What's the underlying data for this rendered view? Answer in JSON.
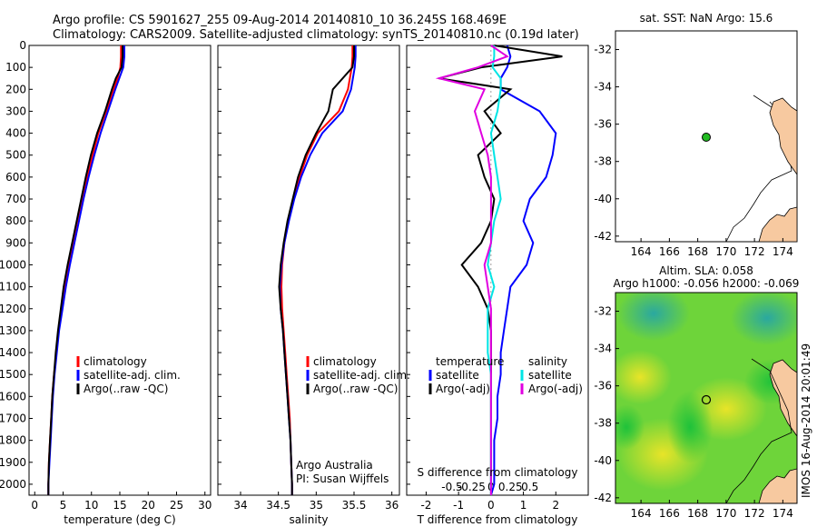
{
  "title_line1": "Argo profile: CS 5901627_255 09-Aug-2014 20140810_10 36.245S 168.469E",
  "title_line2": "Climatology: CARS2009. Satellite-adjusted climatology: synTS_20140810.nc (0.19d later)",
  "side_text": "IMOS 16-Aug-2014 20:01:49",
  "colors": {
    "climatology": "#ff0000",
    "satellite": "#0000ff",
    "argo": "#000000",
    "satellite_s": "#00e5e5",
    "argo_s": "#e000e0",
    "land": "#f7c9a0",
    "point": "#22bb22",
    "ocean_bg": "#ffffff"
  },
  "chart_data": [
    {
      "type": "line",
      "name": "temperature",
      "xlabel": "temperature (deg C)",
      "ylabel": "",
      "xlim": [
        -1,
        31
      ],
      "ylim": [
        2050,
        0
      ],
      "xticks": [
        "0",
        "5",
        "10",
        "15",
        "20",
        "25",
        "30"
      ],
      "yticks": [
        "0",
        "100",
        "200",
        "300",
        "400",
        "500",
        "600",
        "700",
        "800",
        "900",
        "1000",
        "1100",
        "1200",
        "1300",
        "1400",
        "1500",
        "1600",
        "1700",
        "1800",
        "1900",
        "2000"
      ],
      "legend": [
        "climatology",
        "satellite-adj. clim.",
        "Argo(..raw -QC)"
      ],
      "depth": [
        0,
        50,
        100,
        150,
        200,
        300,
        400,
        500,
        600,
        700,
        800,
        900,
        1000,
        1100,
        1200,
        1300,
        1400,
        1500,
        1600,
        1700,
        1800,
        1900,
        2000,
        2050
      ],
      "series": [
        {
          "name": "climatology",
          "values": [
            15.2,
            15.2,
            15.1,
            14.6,
            13.9,
            12.6,
            11.2,
            10.2,
            9.2,
            8.3,
            7.5,
            6.7,
            6.0,
            5.3,
            4.7,
            4.2,
            3.8,
            3.4,
            3.1,
            2.9,
            2.7,
            2.5,
            2.4,
            2.4
          ]
        },
        {
          "name": "satellite-adj. clim.",
          "values": [
            15.8,
            15.8,
            15.6,
            14.9,
            14.2,
            12.9,
            11.6,
            10.5,
            9.5,
            8.6,
            7.8,
            7.0,
            6.2,
            5.5,
            4.9,
            4.3,
            3.9,
            3.5,
            3.2,
            3.0,
            2.8,
            2.6,
            2.4,
            2.4
          ]
        },
        {
          "name": "Argo(..raw -QC)",
          "values": [
            15.5,
            15.5,
            15.3,
            14.3,
            13.6,
            12.4,
            11.0,
            9.9,
            9.0,
            8.2,
            7.4,
            6.6,
            5.8,
            5.1,
            4.6,
            4.1,
            3.7,
            3.4,
            3.1,
            2.9,
            2.7,
            2.5,
            2.4,
            2.4
          ]
        }
      ]
    },
    {
      "type": "line",
      "name": "salinity",
      "xlabel": "salinity",
      "xlim": [
        33.7,
        36.1
      ],
      "ylim": [
        2050,
        0
      ],
      "xticks": [
        "34",
        "34.5",
        "35",
        "35.5",
        "36"
      ],
      "legend": [
        "climatology",
        "satellite-adj. clim.",
        "Argo(..raw -QC)"
      ],
      "annotation": [
        "Argo Australia",
        "PI: Susan Wijffels"
      ],
      "depth": [
        0,
        50,
        100,
        200,
        300,
        400,
        500,
        600,
        700,
        800,
        900,
        1000,
        1100,
        1200,
        1300,
        1400,
        1500,
        1600,
        1700,
        1800,
        1900,
        2000,
        2050
      ],
      "series": [
        {
          "name": "climatology",
          "values": [
            35.48,
            35.48,
            35.47,
            35.42,
            35.3,
            35.02,
            34.88,
            34.78,
            34.7,
            34.63,
            34.58,
            34.55,
            34.54,
            34.55,
            34.57,
            34.59,
            34.61,
            34.63,
            34.65,
            34.66,
            34.67,
            34.68,
            34.68
          ]
        },
        {
          "name": "satellite-adj. clim.",
          "values": [
            35.52,
            35.52,
            35.51,
            35.46,
            35.35,
            35.08,
            34.92,
            34.8,
            34.71,
            34.64,
            34.58,
            34.54,
            34.52,
            34.53,
            34.56,
            34.58,
            34.6,
            34.62,
            34.64,
            34.66,
            34.67,
            34.68,
            34.68
          ]
        },
        {
          "name": "Argo(..raw -QC)",
          "values": [
            35.5,
            35.5,
            35.48,
            35.22,
            35.16,
            35.0,
            34.86,
            34.76,
            34.69,
            34.62,
            34.57,
            34.53,
            34.51,
            34.53,
            34.56,
            34.58,
            34.6,
            34.62,
            34.64,
            34.66,
            34.67,
            34.68,
            34.68
          ]
        }
      ]
    },
    {
      "type": "line",
      "name": "difference",
      "xlabel": "T difference from climatology",
      "xlabel2": "S difference from climatology",
      "xlim": [
        -2.6,
        3.0
      ],
      "ylim": [
        2050,
        0
      ],
      "xticks": [
        "-2",
        "-1",
        "0",
        "1",
        "2"
      ],
      "xticks2": [
        "-0.5",
        "-0.25",
        "0",
        "0.25",
        "0.5"
      ],
      "legend_t": [
        "temperature",
        "satellite",
        "Argo(-adj)"
      ],
      "legend_s": [
        "salinity",
        "satellite",
        "Argo(-adj)"
      ],
      "depth": [
        0,
        50,
        100,
        150,
        200,
        300,
        400,
        500,
        600,
        700,
        800,
        900,
        1000,
        1100,
        1200,
        1300,
        1400,
        1500,
        1600,
        1700,
        1800,
        1900,
        2000,
        2050
      ],
      "series": [
        {
          "name": "temperature satellite",
          "values": [
            0.5,
            0.6,
            0.5,
            0.3,
            0.3,
            1.5,
            2.0,
            1.9,
            1.7,
            1.2,
            1.0,
            1.3,
            1.1,
            0.6,
            0.5,
            0.4,
            0.3,
            0.3,
            0.2,
            0.2,
            0.1,
            0.1,
            0.1,
            0.0
          ]
        },
        {
          "name": "temperature Argo(-adj)",
          "values": [
            0.1,
            2.2,
            -0.3,
            -1.6,
            0.6,
            -0.2,
            0.3,
            -0.4,
            -0.2,
            0.1,
            0.0,
            -0.3,
            -0.9,
            -0.4,
            -0.1,
            0.0,
            0.0,
            0.0,
            0.0,
            0.0,
            0.0,
            0.0,
            0.0,
            0.0
          ]
        },
        {
          "name": "salinity satellite",
          "values": [
            0.1,
            0.1,
            0.05,
            0.3,
            0.3,
            0.2,
            0.0,
            0.1,
            0.2,
            0.3,
            0.1,
            0.0,
            -0.1,
            0.1,
            -0.1,
            -0.1,
            -0.1,
            0.0,
            0.0,
            0.0,
            0.0,
            0.0,
            0.0,
            0.0
          ]
        },
        {
          "name": "salinity Argo(-adj)",
          "values": [
            0.0,
            0.5,
            -0.4,
            -1.6,
            -0.2,
            -0.5,
            -0.3,
            -0.1,
            0.0,
            0.0,
            0.0,
            0.0,
            -0.2,
            -0.1,
            0.0,
            0.0,
            0.0,
            0.0,
            0.0,
            0.0,
            0.0,
            0.0,
            0.0,
            0.0
          ]
        }
      ]
    }
  ],
  "map_top": {
    "title": "sat. SST: NaN Argo: 15.6",
    "xticks": [
      "164",
      "166",
      "168",
      "170",
      "172",
      "174"
    ],
    "yticks": [
      "-32",
      "-34",
      "-36",
      "-38",
      "-40",
      "-42"
    ],
    "point": {
      "lon": 168.469,
      "lat": -36.245
    }
  },
  "map_bottom": {
    "title1": "Altim. SLA: 0.058",
    "title2": "Argo h1000: -0.056 h2000: -0.069",
    "xticks": [
      "164",
      "166",
      "168",
      "170",
      "172",
      "174"
    ],
    "yticks": [
      "-32",
      "-34",
      "-36",
      "-38",
      "-40",
      "-42"
    ],
    "point": {
      "lon": 168.469,
      "lat": -36.245
    }
  }
}
